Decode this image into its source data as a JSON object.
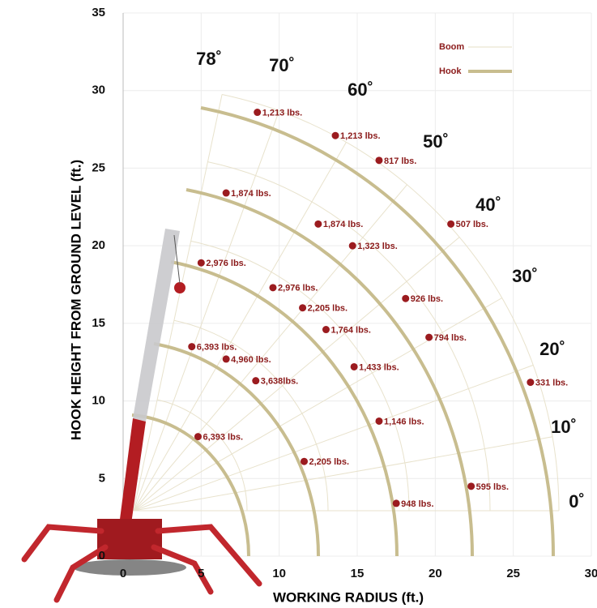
{
  "chart_data": {
    "type": "scatter",
    "xlabel": "WORKING RADIUS (ft.)",
    "ylabel": "HOOK HEIGHT FROM GROUND LEVEL (ft.)",
    "xlim": [
      0,
      30
    ],
    "ylim": [
      0,
      35
    ],
    "xticks": [
      0,
      5,
      10,
      15,
      20,
      25,
      30
    ],
    "yticks": [
      0,
      5,
      10,
      15,
      20,
      25,
      30,
      35
    ],
    "grid": true,
    "legend_position": "upper right",
    "legend": [
      {
        "name": "Boom",
        "color": "#e6dfc6"
      },
      {
        "name": "Hook",
        "color": "#c8bd8f"
      }
    ],
    "angle_labels": [
      "78˚",
      "70˚",
      "60˚",
      "50˚",
      "40˚",
      "30˚",
      "20˚",
      "10˚",
      "0˚"
    ],
    "series": [
      {
        "color": "#9b1b1f",
        "x": [
          8.6,
          13.6,
          16.4,
          21.0,
          26.1
        ],
        "values": [
          28.6,
          27.1,
          25.5,
          21.4,
          11.2
        ],
        "labels": [
          "1,213 lbs.",
          "1,213 lbs.",
          "817 lbs.",
          "507 lbs.",
          "331 lbs."
        ]
      },
      {
        "color": "#9b1b1f",
        "x": [
          6.6,
          12.5,
          14.7,
          18.1,
          19.6,
          22.3
        ],
        "values": [
          23.4,
          21.4,
          20.0,
          16.6,
          14.1,
          4.5
        ],
        "labels": [
          "1,874 lbs.",
          "1,874 lbs.",
          "1,323 lbs.",
          "926 lbs.",
          "794 lbs.",
          "595 lbs."
        ]
      },
      {
        "color": "#9b1b1f",
        "x": [
          5.0,
          9.6,
          11.5,
          13.0,
          14.8,
          16.4,
          17.5
        ],
        "values": [
          18.9,
          17.3,
          16.0,
          14.6,
          12.2,
          8.7,
          3.4
        ],
        "labels": [
          "2,976 lbs.",
          "2,976 lbs.",
          "2,205 lbs.",
          "1,764 lbs.",
          "1,433 lbs.",
          "1,146 lbs.",
          "948 lbs."
        ]
      },
      {
        "color": "#9b1b1f",
        "x": [
          4.4,
          6.6,
          8.5,
          11.6
        ],
        "values": [
          13.5,
          12.7,
          11.3,
          6.1
        ],
        "labels": [
          "6,393 lbs.",
          "4,960 lbs.",
          "3,638lbs.",
          "2,205 lbs."
        ]
      },
      {
        "color": "#9b1b1f",
        "x": [
          4.8
        ],
        "values": [
          7.7
        ],
        "labels": [
          "6,393 lbs."
        ]
      }
    ]
  }
}
